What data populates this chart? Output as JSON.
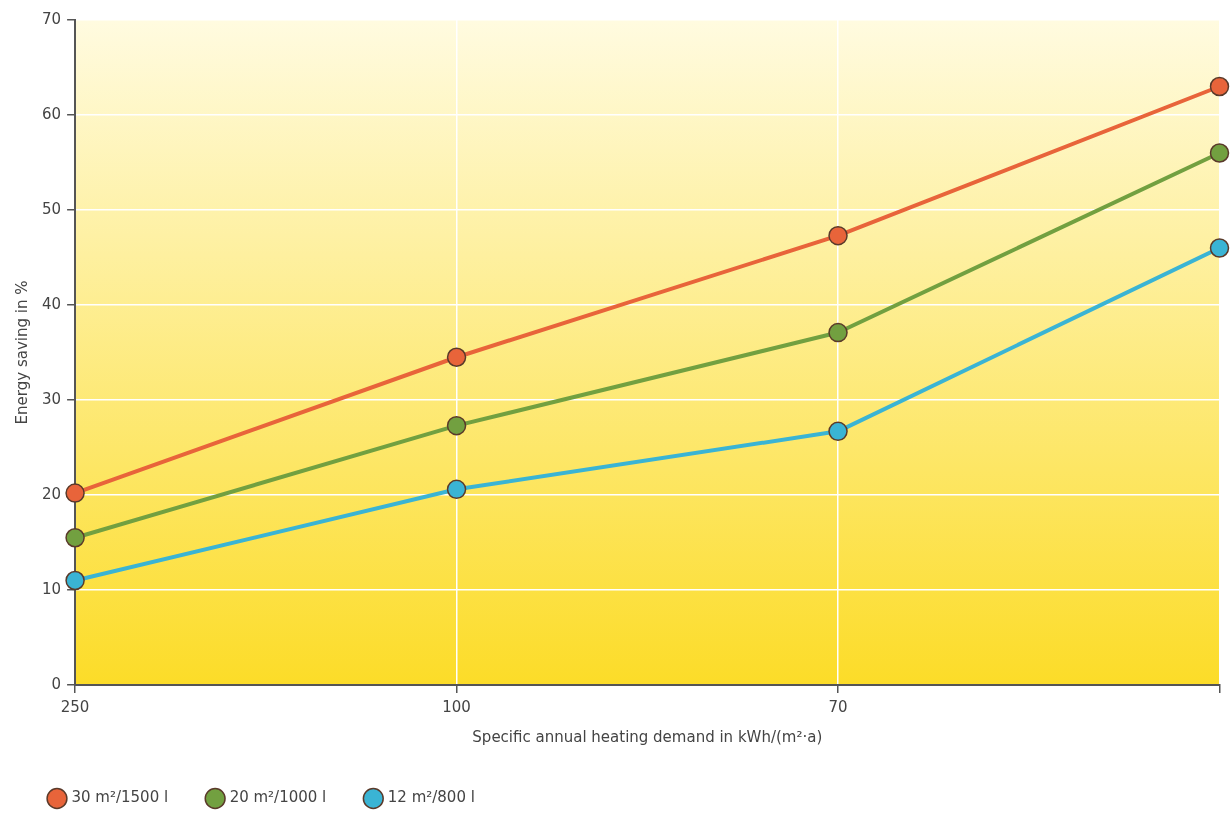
{
  "chart_data": {
    "type": "line",
    "xlabel": "Specific annual heating demand in kWh/(m²·a)",
    "ylabel": "Energy saving in %",
    "categories": [
      "250",
      "100",
      "70",
      null
    ],
    "series": [
      {
        "name": "30 m²/1500 l",
        "color": "#e8643a",
        "values": [
          20.2,
          34.5,
          47.3,
          63
        ]
      },
      {
        "name": "20 m²/1000 l",
        "color": "#72a040",
        "values": [
          15.5,
          27.3,
          37.1,
          56
        ]
      },
      {
        "name": "12 m²/800 l",
        "color": "#3ab4d4",
        "values": [
          11,
          20.6,
          26.7,
          46
        ]
      }
    ],
    "ylim": [
      0,
      70
    ],
    "yticks": [
      0,
      10,
      20,
      30,
      40,
      50,
      60,
      70
    ],
    "grid": true,
    "legend": "bottom left",
    "marker": "circle",
    "line_style": "solid"
  }
}
